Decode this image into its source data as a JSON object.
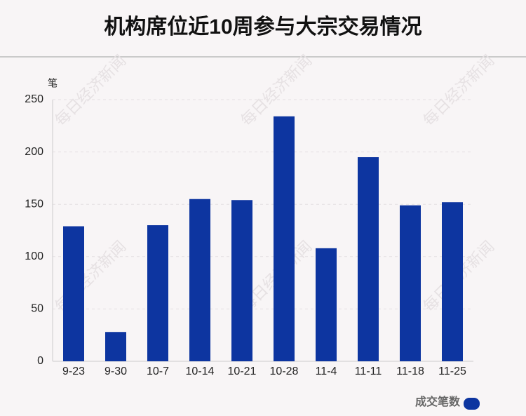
{
  "chart_data": {
    "type": "bar",
    "title": "机构席位近10周参与大宗交易情况",
    "y_label": "笔",
    "watermark": "每日经济新闻",
    "categories": [
      "9-23",
      "9-30",
      "10-7",
      "10-14",
      "10-21",
      "10-28",
      "11-4",
      "11-11",
      "11-18",
      "11-25"
    ],
    "series": [
      {
        "name": "成交笔数",
        "color": "#0d35a0",
        "values": [
          129,
          28,
          130,
          155,
          154,
          234,
          108,
          195,
          149,
          152
        ]
      }
    ],
    "ylim": [
      0,
      250
    ],
    "yticks": [
      0,
      50,
      100,
      150,
      200,
      250
    ],
    "grid": true,
    "legend": "bottom-right"
  }
}
